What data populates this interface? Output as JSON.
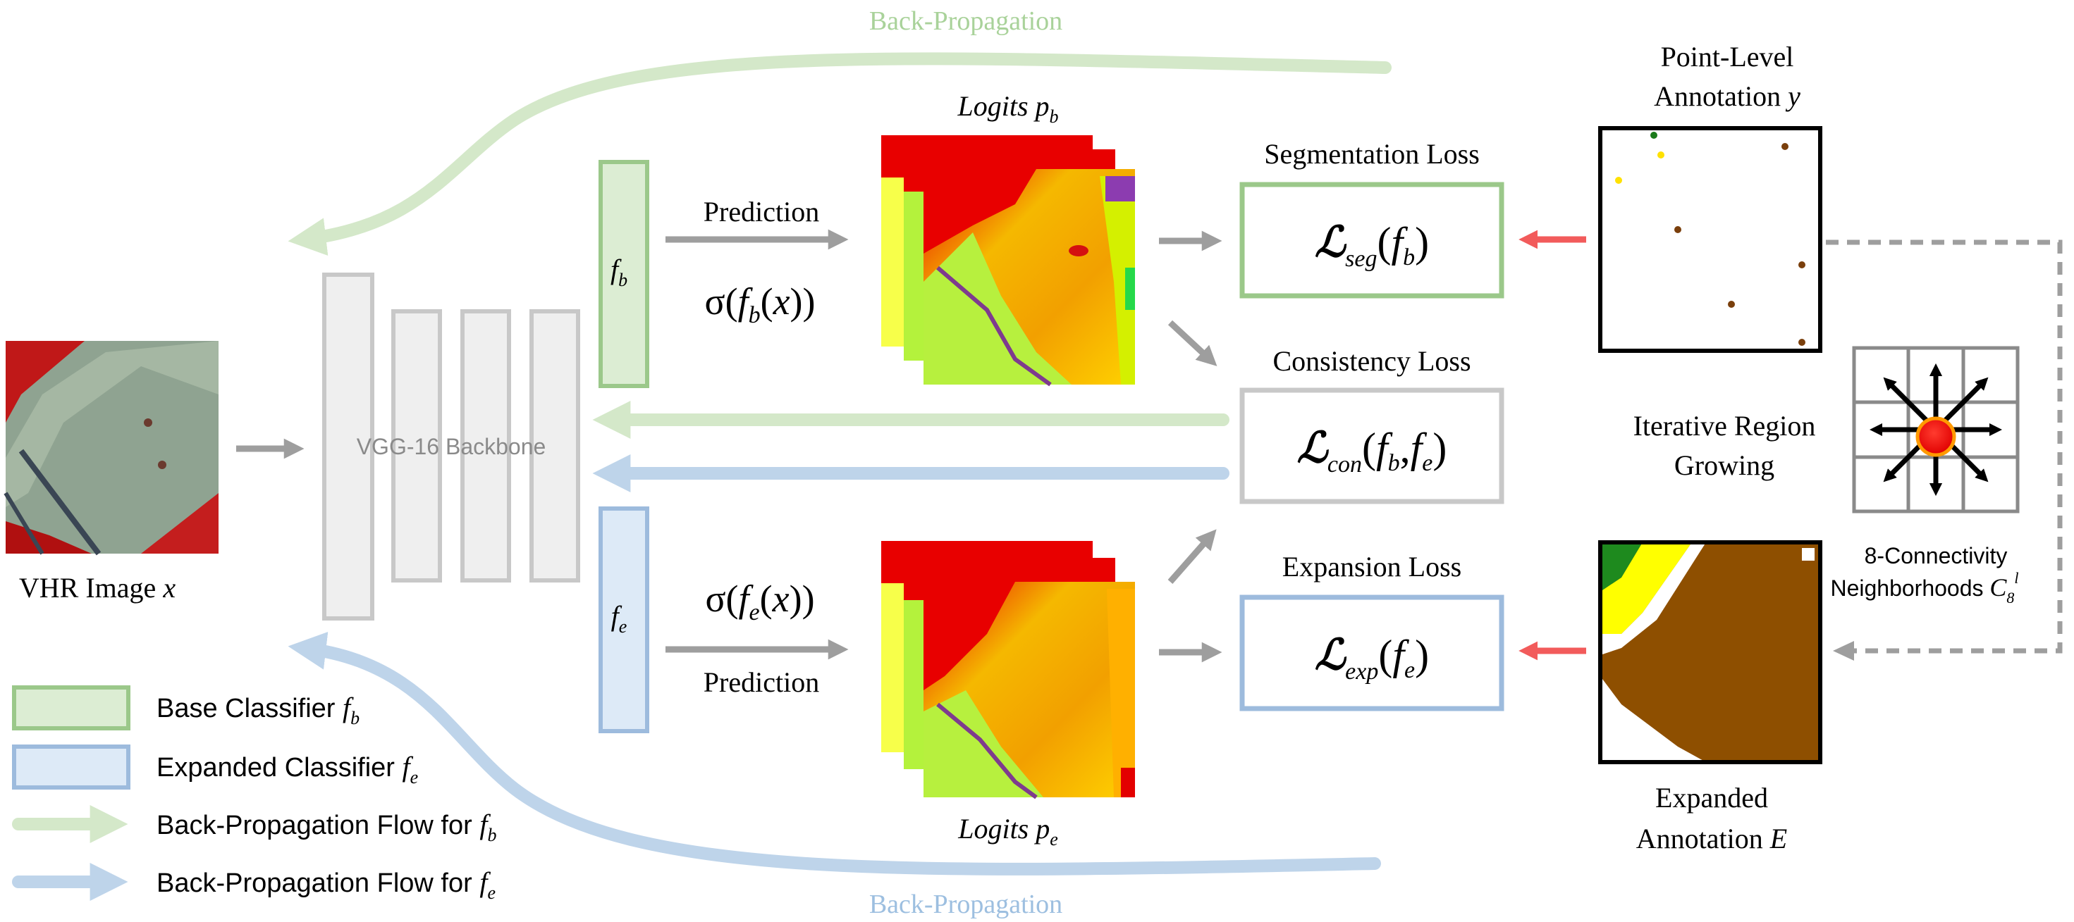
{
  "colors": {
    "base_green": "#9BC88A",
    "base_fill": "#DCEDD3",
    "expanded_blue": "#9DBBDD",
    "expanded_fill": "#DDEAF7",
    "bp_green": "#D4E8C9",
    "bp_blue": "#BED4EA",
    "gray_box": "#C8C8C8",
    "gray_fill": "#EFEFEF",
    "arrow_gray": "#9E9E9E",
    "red_arrow": "#F25B5B",
    "label_green": "#A9D29A",
    "label_blue": "#9DBFE0"
  },
  "top_label": "Back-Propagation",
  "bottom_label": "Back-Propagation",
  "input": {
    "caption_prefix": "VHR Image ",
    "caption_var": "x"
  },
  "backbone": {
    "label": "VGG-16 Backbone"
  },
  "classifiers": {
    "base": {
      "symbol": "f",
      "sub": "b"
    },
    "expanded": {
      "symbol": "f",
      "sub": "e"
    }
  },
  "prediction_top": {
    "label": "Prediction",
    "formula": "σ(f_b(x))"
  },
  "prediction_bottom": {
    "label": "Prediction",
    "formula": "σ(f_e(x))"
  },
  "logits_top": {
    "prefix": "Logits ",
    "var": "p",
    "sub": "b"
  },
  "logits_bottom": {
    "prefix": "Logits ",
    "var": "p",
    "sub": "e"
  },
  "losses": {
    "seg": {
      "title": "Segmentation Loss",
      "sub": "seg",
      "arg": "b"
    },
    "con": {
      "title": "Consistency Loss",
      "sub": "con",
      "arg1": "b",
      "arg2": "e"
    },
    "exp": {
      "title": "Expansion Loss",
      "sub": "exp",
      "arg": "e"
    }
  },
  "point_annotation": {
    "line1": "Point-Level",
    "line2_prefix": "Annotation ",
    "line2_var": "y"
  },
  "region_growing": {
    "line1": "Iterative Region",
    "line2": "Growing"
  },
  "connectivity": {
    "line1": "8-Connectivity",
    "line2_prefix": "Neighborhoods ",
    "var": "C",
    "sub": "8",
    "sup": "l"
  },
  "expanded_annotation": {
    "line1": "Expanded",
    "line2_prefix": "Annotation ",
    "line2_var": "E"
  },
  "legend": [
    {
      "text": "Base Classifier ",
      "var": "f",
      "sub": "b",
      "kind": "box-green"
    },
    {
      "text": "Expanded Classifier ",
      "var": "f",
      "sub": "e",
      "kind": "box-blue"
    },
    {
      "text": "Back-Propagation Flow for ",
      "var": "f",
      "sub": "b",
      "kind": "arrow-green"
    },
    {
      "text": "Back-Propagation Flow for ",
      "var": "f",
      "sub": "e",
      "kind": "arrow-blue"
    }
  ]
}
